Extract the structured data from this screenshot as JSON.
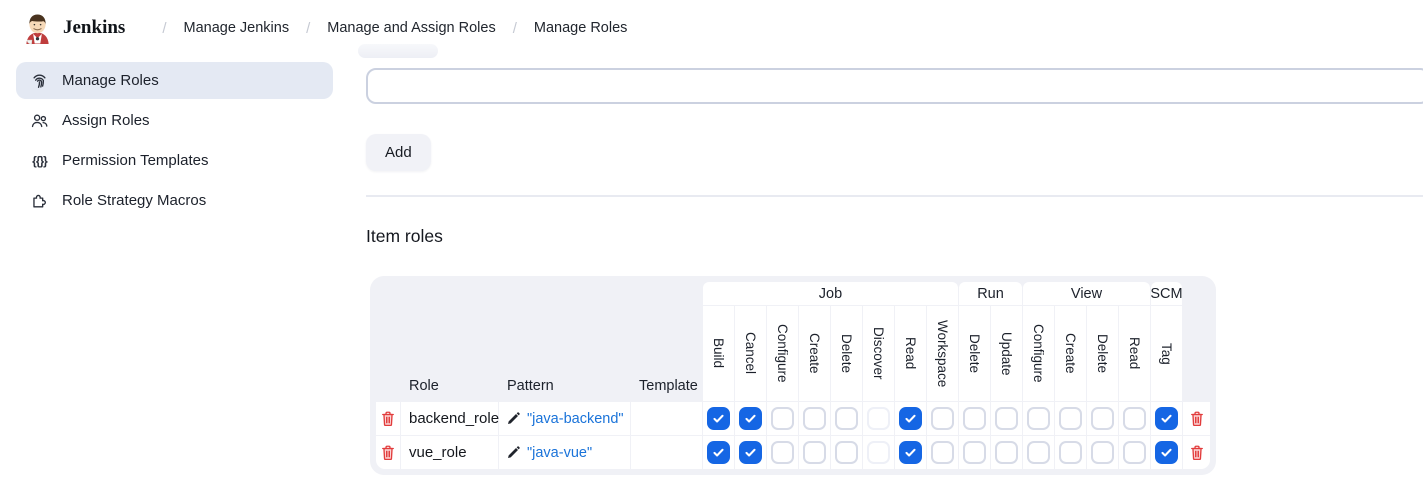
{
  "header": {
    "brand": "Jenkins",
    "separator": "/",
    "breadcrumbs": [
      "Manage Jenkins",
      "Manage and Assign Roles",
      "Manage Roles"
    ]
  },
  "sidebar": {
    "items": [
      {
        "label": "Manage Roles",
        "icon": "fingerprint-icon",
        "selected": true
      },
      {
        "label": "Assign Roles",
        "icon": "users-icon",
        "selected": false
      },
      {
        "label": "Permission Templates",
        "icon": "braces-icon",
        "glyph": "{{}}",
        "selected": false
      },
      {
        "label": "Role Strategy Macros",
        "icon": "puzzle-icon",
        "selected": false
      }
    ]
  },
  "main": {
    "role_input": {
      "value": "",
      "placeholder": ""
    },
    "add_button_label": "Add",
    "section_title": "Item roles",
    "table": {
      "row_header_labels": [
        "Role",
        "Pattern",
        "Template"
      ],
      "permission_groups": [
        {
          "name": "Job",
          "permissions": [
            "Build",
            "Cancel",
            "Configure",
            "Create",
            "Delete",
            "Discover",
            "Read",
            "Workspace"
          ]
        },
        {
          "name": "Run",
          "permissions": [
            "Delete",
            "Update"
          ]
        },
        {
          "name": "View",
          "permissions": [
            "Configure",
            "Create",
            "Delete",
            "Read"
          ]
        },
        {
          "name": "SCM",
          "permissions": [
            "Tag"
          ]
        }
      ],
      "rows": [
        {
          "role": "backend_role",
          "pattern": "\"java-backend\"",
          "template": "",
          "permissions": [
            "checked",
            "checked",
            "unchecked",
            "unchecked",
            "unchecked",
            "disabled",
            "checked",
            "unchecked",
            "unchecked",
            "unchecked",
            "unchecked",
            "unchecked",
            "unchecked",
            "unchecked",
            "checked"
          ]
        },
        {
          "role": "vue_role",
          "pattern": "\"java-vue\"",
          "template": "",
          "permissions": [
            "checked",
            "checked",
            "unchecked",
            "unchecked",
            "unchecked",
            "disabled",
            "checked",
            "unchecked",
            "unchecked",
            "unchecked",
            "unchecked",
            "unchecked",
            "unchecked",
            "unchecked",
            "checked"
          ]
        }
      ]
    }
  },
  "colors": {
    "accent_checked": "#1566e4",
    "link": "#1a73d9",
    "danger": "#e23c3c",
    "sidebar_selected_bg": "#e4e9f3",
    "table_bg": "#f0f1f6"
  }
}
